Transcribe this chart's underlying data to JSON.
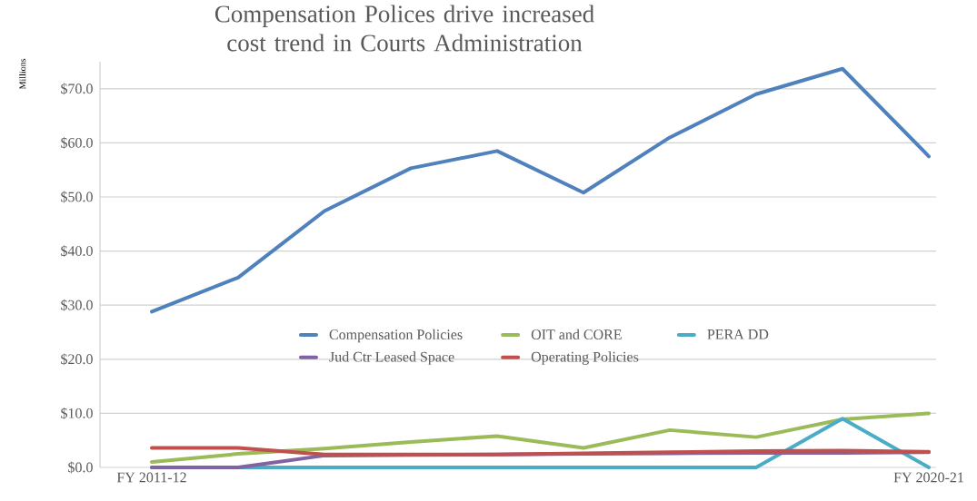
{
  "chart_data": {
    "type": "line",
    "title": "Compensation Polices drive increased cost trend in Courts Administration",
    "ylabel": "Millions",
    "categories": [
      "FY 2011-12",
      null,
      null,
      null,
      null,
      null,
      null,
      null,
      null,
      "FY 2020-21"
    ],
    "series": [
      {
        "name": "Compensation Policies",
        "color": "#4f81bd",
        "values": [
          28.8,
          35.1,
          47.4,
          55.3,
          58.5,
          50.8,
          61.0,
          69.0,
          73.7,
          57.5
        ]
      },
      {
        "name": "OIT and CORE",
        "color": "#9bbb59",
        "values": [
          1.0,
          2.5,
          3.5,
          4.7,
          5.8,
          3.6,
          6.9,
          5.6,
          8.9,
          10.0
        ]
      },
      {
        "name": "PERA DD",
        "color": "#4bacc6",
        "values": [
          0.0,
          0.0,
          0.0,
          0.0,
          0.0,
          0.0,
          0.0,
          0.0,
          9.0,
          0.0
        ]
      },
      {
        "name": "Jud Ctr Leased Space",
        "color": "#8064a2",
        "values": [
          0.0,
          0.0,
          2.2,
          2.3,
          2.4,
          2.5,
          2.6,
          2.7,
          2.7,
          2.8
        ]
      },
      {
        "name": "Operating Policies",
        "color": "#c0504d",
        "values": [
          3.6,
          3.6,
          2.4,
          2.4,
          2.4,
          2.6,
          2.8,
          3.0,
          3.1,
          2.9
        ]
      }
    ],
    "ylim": [
      0,
      75
    ],
    "yticks": [
      {
        "value": 0,
        "label": "$0.0"
      },
      {
        "value": 10,
        "label": "$10.0"
      },
      {
        "value": 20,
        "label": "$20.0"
      },
      {
        "value": 30,
        "label": "$30.0"
      },
      {
        "value": 40,
        "label": "$40.0"
      },
      {
        "value": 50,
        "label": "$50.0"
      },
      {
        "value": 60,
        "label": "$60.0"
      },
      {
        "value": 70,
        "label": "$70.0"
      }
    ],
    "grid": "y",
    "legend": "center",
    "marker": "none",
    "line_style": "solid"
  }
}
